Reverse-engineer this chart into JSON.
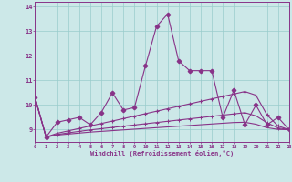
{
  "xlabel": "Windchill (Refroidissement éolien,°C)",
  "bg_color": "#cce8e8",
  "line_color": "#883388",
  "grid_color": "#99cccc",
  "xmin": 0,
  "xmax": 23,
  "ymin": 8.5,
  "ymax": 14.2,
  "yticks": [
    9,
    10,
    11,
    12,
    13,
    14
  ],
  "xticks": [
    0,
    1,
    2,
    3,
    4,
    5,
    6,
    7,
    8,
    9,
    10,
    11,
    12,
    13,
    14,
    15,
    16,
    17,
    18,
    19,
    20,
    21,
    22,
    23
  ],
  "series_main": [
    10.3,
    8.7,
    9.3,
    9.4,
    9.5,
    9.2,
    9.7,
    10.5,
    9.8,
    9.9,
    11.6,
    13.2,
    13.7,
    11.8,
    11.4,
    11.4,
    11.4,
    9.5,
    10.6,
    9.2,
    10.0,
    9.2,
    9.5,
    9.0
  ],
  "series_trend1": [
    10.3,
    8.7,
    8.85,
    8.95,
    9.05,
    9.15,
    9.25,
    9.35,
    9.45,
    9.55,
    9.65,
    9.75,
    9.85,
    9.95,
    10.05,
    10.15,
    10.25,
    10.35,
    10.45,
    10.55,
    10.4,
    9.6,
    9.15,
    9.0
  ],
  "series_trend2": [
    10.3,
    8.7,
    8.8,
    8.87,
    8.93,
    8.99,
    9.04,
    9.09,
    9.14,
    9.19,
    9.24,
    9.29,
    9.34,
    9.39,
    9.44,
    9.49,
    9.54,
    9.59,
    9.64,
    9.69,
    9.56,
    9.28,
    9.07,
    9.0
  ],
  "series_trend3": [
    10.3,
    8.7,
    8.78,
    8.82,
    8.86,
    8.9,
    8.93,
    8.96,
    8.99,
    9.02,
    9.05,
    9.08,
    9.11,
    9.14,
    9.17,
    9.2,
    9.23,
    9.26,
    9.29,
    9.3,
    9.22,
    9.08,
    9.01,
    9.0
  ],
  "figw": 3.2,
  "figh": 2.0,
  "dpi": 100
}
